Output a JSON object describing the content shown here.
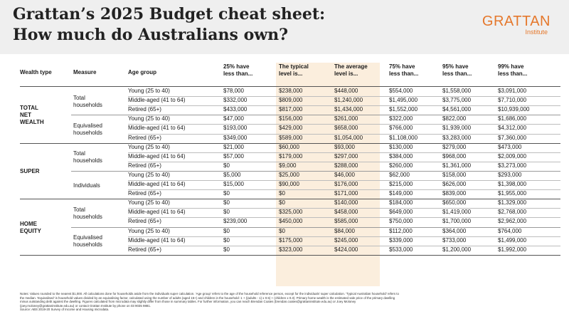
{
  "header": {
    "title_line1": "Grattan’s 2025 Budget cheat sheet:",
    "title_line2": "How much do Australians own?",
    "logo_word": "GRATTAN",
    "logo_sub": "Institute",
    "accent": "#e5782c"
  },
  "columns": {
    "wealth_type": "Wealth type",
    "measure": "Measure",
    "age_group": "Age group",
    "c1": [
      "25% have",
      "less than..."
    ],
    "c2": [
      "The typical",
      "level is..."
    ],
    "c3": [
      "The average",
      "level is..."
    ],
    "c4": [
      "75% have",
      "less than..."
    ],
    "c5": [
      "95% have",
      "less than..."
    ],
    "c6": [
      "99% have",
      "less than..."
    ]
  },
  "groups": [
    {
      "wealth_type": [
        "TOTAL",
        "NET",
        "WEALTH"
      ],
      "measures": [
        {
          "label": [
            "Total",
            "households"
          ],
          "rows": [
            {
              "age": "Young (25 to 40)",
              "v": [
                "$78,000",
                "$238,000",
                "$448,000",
                "$554,000",
                "$1,558,000",
                "$3,091,000"
              ]
            },
            {
              "age": "Middle-aged (41 to 64)",
              "v": [
                "$332,000",
                "$809,000",
                "$1,240,000",
                "$1,495,000",
                "$3,775,000",
                "$7,710,000"
              ]
            },
            {
              "age": "Retired (65+)",
              "v": [
                "$433,000",
                "$817,000",
                "$1,434,000",
                "$1,552,000",
                "$4,561,000",
                "$10,939,000"
              ]
            }
          ]
        },
        {
          "label": [
            "Equivalised",
            "households"
          ],
          "rows": [
            {
              "age": "Young (25 to 40)",
              "v": [
                "$47,000",
                "$156,000",
                "$261,000",
                "$322,000",
                "$822,000",
                "$1,686,000"
              ]
            },
            {
              "age": "Middle-aged (41 to 64)",
              "v": [
                "$193,000",
                "$429,000",
                "$658,000",
                "$766,000",
                "$1,939,000",
                "$4,312,000"
              ]
            },
            {
              "age": "Retired (65+)",
              "v": [
                "$349,000",
                "$589,000",
                "$1,054,000",
                "$1,108,000",
                "$3,283,000",
                "$7,360,000"
              ]
            }
          ]
        }
      ]
    },
    {
      "wealth_type": [
        "SUPER"
      ],
      "measures": [
        {
          "label": [
            "Total",
            "households"
          ],
          "rows": [
            {
              "age": "Young (25 to 40)",
              "v": [
                "$21,000",
                "$60,000",
                "$93,000",
                "$130,000",
                "$279,000",
                "$473,000"
              ]
            },
            {
              "age": "Middle-aged (41 to 64)",
              "v": [
                "$57,000",
                "$179,000",
                "$297,000",
                "$384,000",
                "$968,000",
                "$2,009,000"
              ]
            },
            {
              "age": "Retired (65+)",
              "v": [
                "$0",
                "$9,000",
                "$288,000",
                "$260,000",
                "$1,361,000",
                "$3,273,000"
              ]
            }
          ]
        },
        {
          "label": [
            "Individuals"
          ],
          "rows": [
            {
              "age": "Young (25 to 40)",
              "v": [
                "$5,000",
                "$25,000",
                "$46,000",
                "$62,000",
                "$158,000",
                "$293,000"
              ]
            },
            {
              "age": "Middle-aged (41 to 64)",
              "v": [
                "$15,000",
                "$90,000",
                "$176,000",
                "$215,000",
                "$626,000",
                "$1,398,000"
              ]
            },
            {
              "age": "Retired (65+)",
              "v": [
                "$0",
                "$0",
                "$171,000",
                "$149,000",
                "$839,000",
                "$1,955,000"
              ]
            }
          ]
        }
      ]
    },
    {
      "wealth_type": [
        "HOME",
        "EQUITY"
      ],
      "measures": [
        {
          "label": [
            "Total",
            "households"
          ],
          "rows": [
            {
              "age": "Young (25 to 40)",
              "v": [
                "$0",
                "$0",
                "$140,000",
                "$184,000",
                "$650,000",
                "$1,329,000"
              ]
            },
            {
              "age": "Middle-aged (41 to 64)",
              "v": [
                "$0",
                "$325,000",
                "$458,000",
                "$649,000",
                "$1,419,000",
                "$2,768,000"
              ]
            },
            {
              "age": "Retired (65+)",
              "v": [
                "$239,000",
                "$450,000",
                "$585,000",
                "$750,000",
                "$1,700,000",
                "$2,962,000"
              ]
            }
          ]
        },
        {
          "label": [
            "Equivalised",
            "households"
          ],
          "rows": [
            {
              "age": "Young (25 to 40)",
              "v": [
                "$0",
                "$0",
                "$84,000",
                "$112,000",
                "$364,000",
                "$764,000"
              ]
            },
            {
              "age": "Middle-aged (41 to 64)",
              "v": [
                "$0",
                "$175,000",
                "$245,000",
                "$339,000",
                "$733,000",
                "$1,499,000"
              ]
            },
            {
              "age": "Retired (65+)",
              "v": [
                "$0",
                "$323,000",
                "$424,000",
                "$533,000",
                "$1,200,000",
                "$1,992,000"
              ]
            }
          ]
        }
      ]
    }
  ],
  "notes": {
    "line1": "Notes: Values rounded to the nearest $1,000. All calculations done for households aside from the individuals super calculation. ‘Age group’ refers to the age of the household reference person, except for the individuals’ super calculation. ‘Typical Australian household’ refers to",
    "line2": "the median. ‘Equivalised’ is household values divided by an equivalising factor, calculated using the number of adults (aged 15+) and children in the household: 1 + ((adults - 1) x 0.5) + (children x 0.3). Primary home wealth is the estimated sale price of the primary dwelling",
    "line3": "minus outstanding debt against the dwelling. Figures calculated from microdata may slightly differ from those in summary tables. For further information, you can reach Brendan Coates (brendan.coates@grattaninstitute.edu.au) or Joey Moloney",
    "line4": "(joey.moloney@grattaninstitute.edu.au) or contact Grattan Institute by phone on 03 9035 9881.",
    "line5": "Source: ABS 2019-20 Survey of Income and Housing microdata."
  }
}
